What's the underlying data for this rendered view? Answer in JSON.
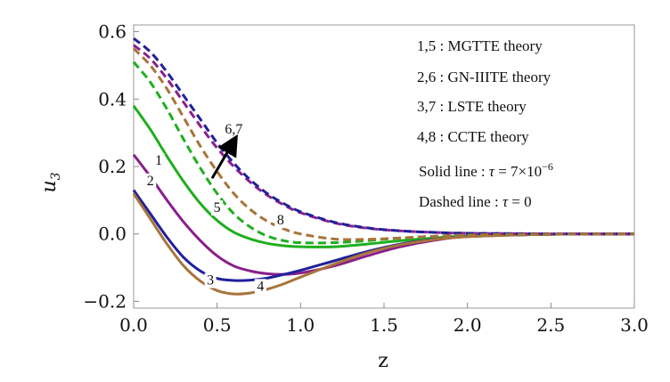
{
  "chart_data": {
    "type": "line",
    "xlabel": "z",
    "ylabel": "u",
    "ylabel_sub": "3",
    "xlim": [
      0,
      3.0
    ],
    "ylim": [
      -0.22,
      0.62
    ],
    "xticks": [
      "0.0",
      "0.5",
      "1.0",
      "1.5",
      "2.0",
      "2.5",
      "3.0"
    ],
    "xtick_values": [
      0,
      0.5,
      1.0,
      1.5,
      2.0,
      2.5,
      3.0
    ],
    "yticks": [
      "−0.2",
      "0.0",
      "0.2",
      "0.4",
      "0.6"
    ],
    "ytick_values": [
      -0.2,
      0,
      0.2,
      0.4,
      0.6
    ],
    "grid": false,
    "legend_placement": "top-right",
    "legend": [
      "1,5 : MGTTE theory",
      "2,6 : GN-IIITE theory",
      "3,7 : LSTE theory",
      "4,8 : CCTE theory"
    ],
    "notes": {
      "solid_prefix": "Solid line : ",
      "solid_tau": "τ",
      "solid_value": " = 7×10",
      "solid_exp": "−6",
      "dashed_prefix": "Dashed line : ",
      "dashed_tau": "τ",
      "dashed_value": " = 0"
    },
    "series": [
      {
        "id": "s1",
        "color": "#1fae1f",
        "dash": false,
        "x": [
          0.0,
          0.1,
          0.2,
          0.3,
          0.4,
          0.5,
          0.6,
          0.7,
          0.8,
          0.9,
          1.0,
          1.2,
          1.4,
          1.6,
          1.8,
          2.0,
          2.5,
          3.0
        ],
        "y": [
          0.38,
          0.31,
          0.23,
          0.155,
          0.09,
          0.04,
          0.005,
          -0.015,
          -0.028,
          -0.035,
          -0.038,
          -0.038,
          -0.03,
          -0.02,
          -0.012,
          -0.006,
          -0.001,
          0.0
        ]
      },
      {
        "id": "s2",
        "color": "#8a1f8a",
        "dash": false,
        "x": [
          0.0,
          0.1,
          0.2,
          0.3,
          0.4,
          0.5,
          0.6,
          0.7,
          0.8,
          0.9,
          1.0,
          1.2,
          1.4,
          1.6,
          1.8,
          2.0,
          2.5,
          3.0
        ],
        "y": [
          0.235,
          0.17,
          0.1,
          0.035,
          -0.02,
          -0.065,
          -0.095,
          -0.11,
          -0.118,
          -0.12,
          -0.116,
          -0.095,
          -0.065,
          -0.038,
          -0.019,
          -0.008,
          -0.001,
          0.0
        ]
      },
      {
        "id": "s3",
        "color": "#20209a",
        "dash": false,
        "x": [
          0.0,
          0.1,
          0.2,
          0.3,
          0.4,
          0.5,
          0.6,
          0.7,
          0.8,
          0.9,
          1.0,
          1.2,
          1.4,
          1.6,
          1.8,
          2.0,
          2.5,
          3.0
        ],
        "y": [
          0.13,
          0.06,
          -0.01,
          -0.07,
          -0.11,
          -0.132,
          -0.138,
          -0.137,
          -0.131,
          -0.12,
          -0.108,
          -0.08,
          -0.052,
          -0.03,
          -0.016,
          -0.007,
          -0.001,
          0.0
        ]
      },
      {
        "id": "s4",
        "color": "#a8743a",
        "dash": false,
        "x": [
          0.0,
          0.1,
          0.2,
          0.3,
          0.4,
          0.5,
          0.6,
          0.7,
          0.8,
          0.9,
          1.0,
          1.2,
          1.4,
          1.6,
          1.8,
          2.0,
          2.5,
          3.0
        ],
        "y": [
          0.12,
          0.045,
          -0.03,
          -0.095,
          -0.14,
          -0.168,
          -0.178,
          -0.175,
          -0.164,
          -0.148,
          -0.128,
          -0.09,
          -0.056,
          -0.032,
          -0.017,
          -0.008,
          -0.001,
          0.0
        ]
      },
      {
        "id": "s5",
        "color": "#1fae1f",
        "dash": true,
        "x": [
          0.0,
          0.1,
          0.2,
          0.3,
          0.4,
          0.5,
          0.6,
          0.7,
          0.8,
          0.9,
          1.0,
          1.2,
          1.4,
          1.6,
          1.8,
          2.0,
          2.5,
          3.0
        ],
        "y": [
          0.51,
          0.45,
          0.37,
          0.28,
          0.195,
          0.12,
          0.06,
          0.02,
          -0.006,
          -0.02,
          -0.026,
          -0.026,
          -0.02,
          -0.012,
          -0.007,
          -0.003,
          -0.001,
          0.0
        ]
      },
      {
        "id": "s6",
        "color": "#8a1f8a",
        "dash": true,
        "x": [
          0.0,
          0.1,
          0.2,
          0.3,
          0.4,
          0.5,
          0.6,
          0.7,
          0.8,
          0.9,
          1.0,
          1.2,
          1.4,
          1.6,
          1.8,
          2.0,
          2.5,
          3.0
        ],
        "y": [
          0.56,
          0.52,
          0.46,
          0.39,
          0.32,
          0.255,
          0.2,
          0.153,
          0.115,
          0.086,
          0.063,
          0.033,
          0.017,
          0.009,
          0.0045,
          0.002,
          0.0003,
          0.0
        ]
      },
      {
        "id": "s7",
        "color": "#20209a",
        "dash": true,
        "x": [
          0.0,
          0.1,
          0.2,
          0.3,
          0.4,
          0.5,
          0.6,
          0.7,
          0.8,
          0.9,
          1.0,
          1.2,
          1.4,
          1.6,
          1.8,
          2.0,
          2.5,
          3.0
        ],
        "y": [
          0.58,
          0.54,
          0.48,
          0.41,
          0.34,
          0.27,
          0.21,
          0.16,
          0.12,
          0.09,
          0.066,
          0.035,
          0.018,
          0.009,
          0.0045,
          0.002,
          0.0003,
          0.0
        ]
      },
      {
        "id": "s8",
        "color": "#a8743a",
        "dash": true,
        "x": [
          0.0,
          0.1,
          0.2,
          0.3,
          0.4,
          0.5,
          0.6,
          0.7,
          0.8,
          0.9,
          1.0,
          1.2,
          1.4,
          1.6,
          1.8,
          2.0,
          2.5,
          3.0
        ],
        "y": [
          0.55,
          0.5,
          0.43,
          0.345,
          0.26,
          0.185,
          0.12,
          0.072,
          0.038,
          0.015,
          0.0,
          -0.015,
          -0.016,
          -0.012,
          -0.007,
          -0.003,
          -0.0005,
          0.0
        ]
      }
    ],
    "curve_labels": [
      {
        "text": "1",
        "x": 0.15,
        "y": 0.205
      },
      {
        "text": "2",
        "x": 0.1,
        "y": 0.145
      },
      {
        "text": "3",
        "x": 0.46,
        "y": -0.15
      },
      {
        "text": "4",
        "x": 0.76,
        "y": -0.168
      },
      {
        "text": "5",
        "x": 0.5,
        "y": 0.065
      },
      {
        "text": "8",
        "x": 0.88,
        "y": 0.028
      },
      {
        "text": "6,7",
        "x": 0.6,
        "y": 0.298
      }
    ],
    "arrow": {
      "from": [
        0.47,
        0.165
      ],
      "to": [
        0.6,
        0.275
      ]
    }
  }
}
